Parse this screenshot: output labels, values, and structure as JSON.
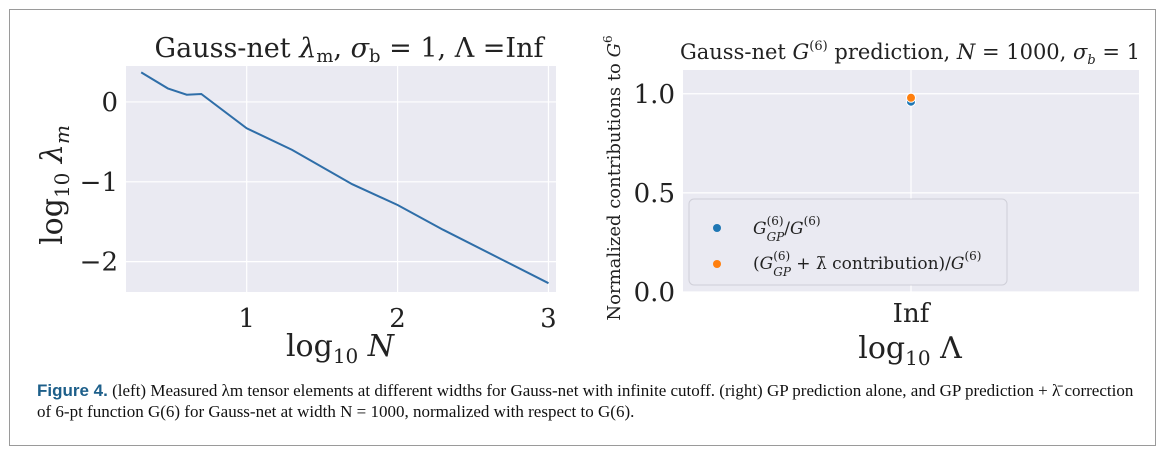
{
  "chart_data": [
    {
      "type": "line",
      "title": "Gauss-net λm,  σb = 1, Λ =Inf",
      "xlabel": "log10 N",
      "ylabel": "log10 λm",
      "xlim": [
        0.2,
        3.05
      ],
      "ylim": [
        -2.38,
        0.45
      ],
      "xticks": [
        1,
        2,
        3
      ],
      "xtick_labels": [
        "1",
        "2",
        "3"
      ],
      "yticks": [
        0,
        -1,
        -2
      ],
      "ytick_labels": [
        "0",
        "−1",
        "−2"
      ],
      "grid": true,
      "series": [
        {
          "x": [
            0.301,
            0.477,
            0.602,
            0.699,
            1.0,
            1.301,
            1.699,
            2.0,
            2.301,
            2.699,
            3.0
          ],
          "y": [
            0.37,
            0.17,
            0.09,
            0.1,
            -0.33,
            -0.6,
            -1.03,
            -1.29,
            -1.6,
            -1.98,
            -2.27
          ],
          "color": "#2f6ea8"
        }
      ]
    },
    {
      "type": "scatter",
      "title": "Gauss-net G(6) prediction, N = 1000, σb = 1",
      "xlabel": "log10 Λ",
      "ylabel": "Normalized contributions to G6",
      "categories": [
        "Inf"
      ],
      "ylim": [
        0.0,
        1.12
      ],
      "yticks": [
        0.0,
        0.5,
        1.0
      ],
      "ytick_labels": [
        "0.0",
        "0.5",
        "1.0"
      ],
      "grid": true,
      "legend_position": "lower-left",
      "series": [
        {
          "name": "G(6)GP/G(6)",
          "values": [
            0.96
          ],
          "color": "#1f77b4"
        },
        {
          "name": "(G(6)GP + λ̄ contribution)/G(6)",
          "values": [
            0.98
          ],
          "color": "#ff7f0e"
        }
      ]
    }
  ],
  "caption": {
    "label": "Figure 4.",
    "text": " (left) Measured λm tensor elements at different widths for Gauss-net with infinite cutoff. (right) GP prediction alone, and GP prediction + λ̄ correction of 6-pt function G(6) for Gauss-net at width N = 1000, normalized with respect to G(6)."
  }
}
